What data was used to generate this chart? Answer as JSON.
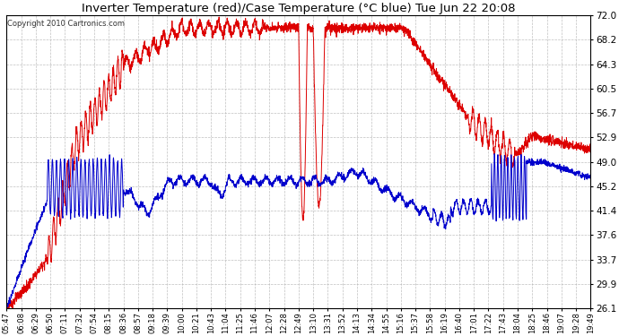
{
  "title": "Inverter Temperature (red)/Case Temperature (°C blue) Tue Jun 22 20:08",
  "copyright": "Copyright 2010 Cartronics.com",
  "background_color": "#ffffff",
  "plot_bg_color": "#ffffff",
  "grid_color": "#b0b0b0",
  "red_color": "#dd0000",
  "blue_color": "#0000cc",
  "ylim": [
    26.1,
    72.0
  ],
  "yticks": [
    26.1,
    29.9,
    33.7,
    37.6,
    41.4,
    45.2,
    49.0,
    52.9,
    56.7,
    60.5,
    64.3,
    68.2,
    72.0
  ],
  "xtick_labels": [
    "05:47",
    "06:08",
    "06:29",
    "06:50",
    "07:11",
    "07:32",
    "07:54",
    "08:15",
    "08:36",
    "08:57",
    "09:18",
    "09:39",
    "10:00",
    "10:21",
    "10:43",
    "11:04",
    "11:25",
    "11:46",
    "12:07",
    "12:28",
    "12:49",
    "13:10",
    "13:31",
    "13:52",
    "14:13",
    "14:34",
    "14:55",
    "15:16",
    "15:37",
    "15:58",
    "16:19",
    "16:40",
    "17:01",
    "17:22",
    "17:43",
    "18:04",
    "18:25",
    "18:46",
    "19:07",
    "19:28",
    "19:49"
  ]
}
